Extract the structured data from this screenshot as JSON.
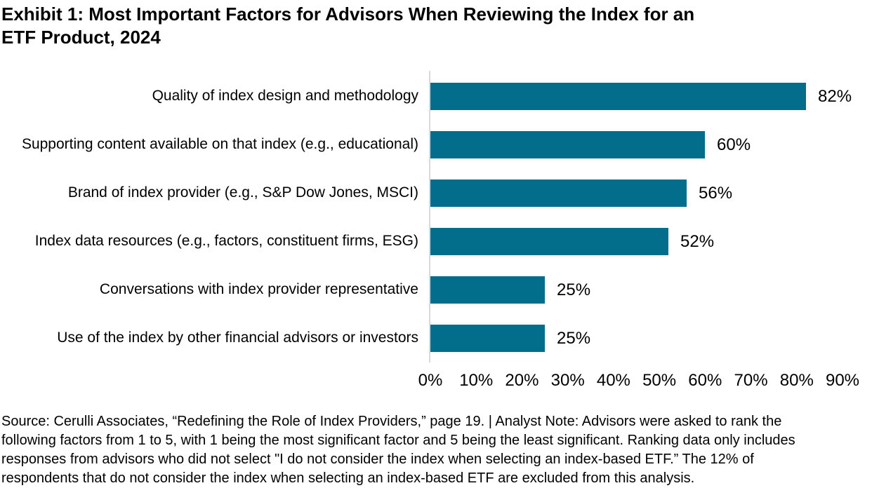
{
  "title": {
    "lines": [
      "Exhibit 1: Most Important Factors for Advisors When Reviewing the Index for an",
      "ETF Product, 2024"
    ],
    "full": "Exhibit 1: Most Important Factors for Advisors When Reviewing the Index for an ETF Product, 2024"
  },
  "chart_data": {
    "type": "bar",
    "orientation": "horizontal",
    "title": "Exhibit 1: Most Important Factors for Advisors When Reviewing the Index for an ETF Product, 2024",
    "categories": [
      "Quality of index design and methodology",
      "Supporting content available on that index (e.g., educational)",
      "Brand of index provider (e.g., S&P Dow Jones, MSCI)",
      "Index data resources (e.g., factors, constituent firms, ESG)",
      "Conversations with index provider representative",
      "Use of the index by other financial advisors or investors"
    ],
    "values": [
      82,
      60,
      56,
      52,
      25,
      25
    ],
    "value_labels": [
      "82%",
      "60%",
      "56%",
      "52%",
      "25%",
      "25%"
    ],
    "x_ticks": [
      "0%",
      "10%",
      "20%",
      "30%",
      "40%",
      "50%",
      "60%",
      "70%",
      "80%",
      "90%"
    ],
    "xlim": [
      0,
      90
    ],
    "grid": false,
    "legend": false,
    "bar_color": "#036D8C",
    "axis_line_color": "#D9D9D9",
    "text_color": "#000000",
    "background_color": "#FFFFFF"
  },
  "source_note": {
    "lines": [
      "Source: Cerulli Associates, “Redefining the Role of Index Providers,” page 19. | Analyst Note: Advisors were asked to rank the",
      "following factors from 1 to 5, with 1 being the most significant factor and 5 being the least significant. Ranking data only includes",
      "responses from advisors who did not select \"I do not consider the index when selecting an index-based ETF.” The 12% of",
      "respondents that do not consider the index when selecting an index-based ETF are excluded from this analysis."
    ],
    "full": "Source: Cerulli Associates, “Redefining the Role of Index Providers,” page 19. | Analyst Note: Advisors were asked to rank the following factors from 1 to 5, with 1 being the most significant factor and 5 being the least significant. Ranking data only includes responses from advisors who did not select \"I do not consider the index when selecting an index-based ETF.” The 12% of respondents that do not consider the index when selecting an index-based ETF are excluded from this analysis."
  }
}
